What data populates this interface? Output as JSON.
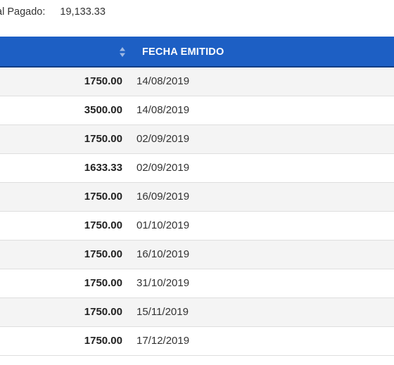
{
  "summary": {
    "label": "tal Pagado:",
    "value": "19,133.33"
  },
  "table": {
    "header": {
      "date_column": "FECHA EMITIDO",
      "sort_icon": "sort-up-down-icon"
    },
    "rows": [
      {
        "amount": "1750.00",
        "date": "14/08/2019"
      },
      {
        "amount": "3500.00",
        "date": "14/08/2019"
      },
      {
        "amount": "1750.00",
        "date": "02/09/2019"
      },
      {
        "amount": "1633.33",
        "date": "02/09/2019"
      },
      {
        "amount": "1750.00",
        "date": "16/09/2019"
      },
      {
        "amount": "1750.00",
        "date": "01/10/2019"
      },
      {
        "amount": "1750.00",
        "date": "16/10/2019"
      },
      {
        "amount": "1750.00",
        "date": "31/10/2019"
      },
      {
        "amount": "1750.00",
        "date": "15/11/2019"
      },
      {
        "amount": "1750.00",
        "date": "17/12/2019"
      }
    ]
  },
  "colors": {
    "header_bg": "#1d5fc4",
    "row_stripe": "#f4f4f4"
  }
}
